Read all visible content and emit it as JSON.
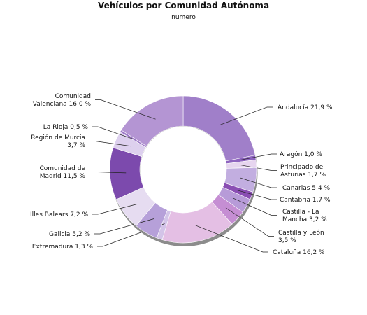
{
  "chart_data": {
    "type": "pie",
    "title": "Vehículos por Comunidad Autónoma",
    "subtitle": "numero",
    "slices": [
      {
        "name": "Andalucía",
        "value": 21.9,
        "label": [
          "Andalucía 21,9 %"
        ],
        "color": "#a07fc9"
      },
      {
        "name": "Aragón",
        "value": 1.0,
        "label": [
          "Aragón 1,0 %"
        ],
        "color": "#8e64bf"
      },
      {
        "name": "Principado de Asturias",
        "value": 1.7,
        "label": [
          "Principado de",
          "Asturias 1,7 %"
        ],
        "color": "#e6d5ef"
      },
      {
        "name": "Canarias",
        "value": 5.4,
        "label": [
          "Canarias 5,4 %"
        ],
        "color": "#c2aee0"
      },
      {
        "name": "Cantabria",
        "value": 1.7,
        "label": [
          "Cantabria 1,7 %"
        ],
        "color": "#8a4eb3"
      },
      {
        "name": "Castilla - La Mancha",
        "value": 3.2,
        "label": [
          "Castilla - La",
          "Mancha 3,2 %"
        ],
        "color": "#b79bd8"
      },
      {
        "name": "Castilla y León",
        "value": 3.5,
        "label": [
          "Castilla y León",
          "3,5 %"
        ],
        "color": "#c58ed3"
      },
      {
        "name": "Cataluña",
        "value": 16.2,
        "label": [
          "Cataluña 16,2 %"
        ],
        "color": "#e4bfe4"
      },
      {
        "name": "Extremadura",
        "value": 1.3,
        "label": [
          "Extremadura 1,3 %"
        ],
        "color": "#d3c4e8"
      },
      {
        "name": "Galicia",
        "value": 5.2,
        "label": [
          "Galicia 5,2 %"
        ],
        "color": "#b6a0d9"
      },
      {
        "name": "Illes Balears",
        "value": 7.2,
        "label": [
          "Illes Balears 7,2 %"
        ],
        "color": "#e6dcf1"
      },
      {
        "name": "Comunidad de Madrid",
        "value": 11.5,
        "label": [
          "Comunidad de",
          "Madrid 11,5 %"
        ],
        "color": "#7c4aad"
      },
      {
        "name": "Región de Murcia",
        "value": 3.7,
        "label": [
          "Región de Murcia",
          "3,7 %"
        ],
        "color": "#ddd0ee"
      },
      {
        "name": "La Rioja",
        "value": 0.5,
        "label": [
          "La Rioja 0,5 %"
        ],
        "color": "#9b77c6"
      },
      {
        "name": "Comunidad Valenciana",
        "value": 16.0,
        "label": [
          "Comunidad",
          "Valenciana 16,0 %"
        ],
        "color": "#b495d3"
      }
    ]
  }
}
